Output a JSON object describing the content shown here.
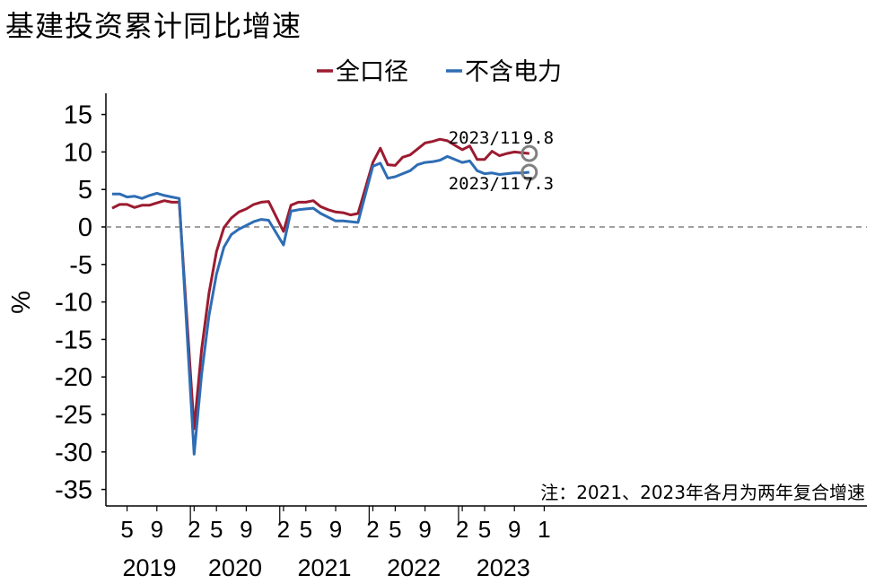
{
  "page_title": "基建投资累计同比增速",
  "colors": {
    "series_total": "#9B1B30",
    "series_ex_power": "#2E6DB4",
    "axis": "#000000",
    "zero_line": "#808080",
    "marker": "#808080"
  },
  "chart_data": {
    "type": "line",
    "title": "基建投资累计同比增速",
    "ylabel": "%",
    "ylim": [
      -35,
      17
    ],
    "yticks": [
      15,
      10,
      5,
      0,
      -5,
      -10,
      -15,
      -20,
      -25,
      -30,
      -35
    ],
    "x_tick_labels": [
      "5",
      "9",
      "2",
      "5",
      "9",
      "2",
      "5",
      "9",
      "2",
      "5",
      "9",
      "2",
      "5",
      "9",
      "1"
    ],
    "x_year_labels": [
      "2019",
      "2020",
      "2021",
      "2022",
      "2023"
    ],
    "legend": {
      "position": "top-center"
    },
    "x": [
      "2019-03",
      "2019-04",
      "2019-05",
      "2019-06",
      "2019-07",
      "2019-08",
      "2019-09",
      "2019-10",
      "2019-11",
      "2019-12",
      "2020-02",
      "2020-03",
      "2020-04",
      "2020-05",
      "2020-06",
      "2020-07",
      "2020-08",
      "2020-09",
      "2020-10",
      "2020-11",
      "2020-12",
      "2021-02",
      "2021-03",
      "2021-04",
      "2021-05",
      "2021-06",
      "2021-07",
      "2021-08",
      "2021-09",
      "2021-10",
      "2021-11",
      "2021-12",
      "2022-02",
      "2022-03",
      "2022-04",
      "2022-05",
      "2022-06",
      "2022-07",
      "2022-08",
      "2022-09",
      "2022-10",
      "2022-11",
      "2022-12",
      "2023-02",
      "2023-03",
      "2023-04",
      "2023-05",
      "2023-06",
      "2023-07",
      "2023-08",
      "2023-09",
      "2023-10",
      "2023-11"
    ],
    "series": [
      {
        "name": "全口径",
        "color": "#9B1B30",
        "values": [
          2.5,
          3.0,
          3.0,
          2.6,
          2.9,
          2.9,
          3.2,
          3.5,
          3.3,
          3.3,
          -26.9,
          -16.4,
          -8.8,
          -3.3,
          -0.1,
          1.2,
          2.0,
          2.4,
          3.0,
          3.3,
          3.4,
          -0.6,
          2.9,
          3.3,
          3.3,
          3.5,
          2.7,
          2.3,
          2.0,
          1.9,
          1.6,
          1.8,
          8.6,
          10.5,
          8.3,
          8.2,
          9.3,
          9.6,
          10.4,
          11.2,
          11.4,
          11.7,
          11.5,
          10.3,
          10.8,
          9.0,
          9.0,
          10.1,
          9.5,
          9.8,
          10.0,
          9.9,
          9.8
        ]
      },
      {
        "name": "不含电力",
        "color": "#2E6DB4",
        "values": [
          4.4,
          4.4,
          4.0,
          4.1,
          3.8,
          4.2,
          4.5,
          4.2,
          4.0,
          3.8,
          -30.3,
          -19.7,
          -11.8,
          -6.3,
          -2.7,
          -1.0,
          -0.3,
          0.2,
          0.7,
          1.0,
          0.9,
          -2.4,
          2.1,
          2.3,
          2.4,
          2.5,
          1.8,
          1.3,
          0.8,
          0.8,
          0.7,
          0.6,
          8.1,
          8.5,
          6.5,
          6.7,
          7.1,
          7.5,
          8.3,
          8.6,
          8.7,
          8.9,
          9.4,
          8.6,
          8.8,
          7.5,
          7.1,
          7.2,
          7.0,
          7.1,
          7.2,
          7.2,
          7.3
        ]
      }
    ],
    "annotations": [
      {
        "date_label": "2023/11",
        "value_label": "9.8",
        "series": "全口径"
      },
      {
        "date_label": "2023/11",
        "value_label": "7.3",
        "series": "不含电力"
      }
    ],
    "note": "注：2021、2023年各月为两年复合增速"
  }
}
